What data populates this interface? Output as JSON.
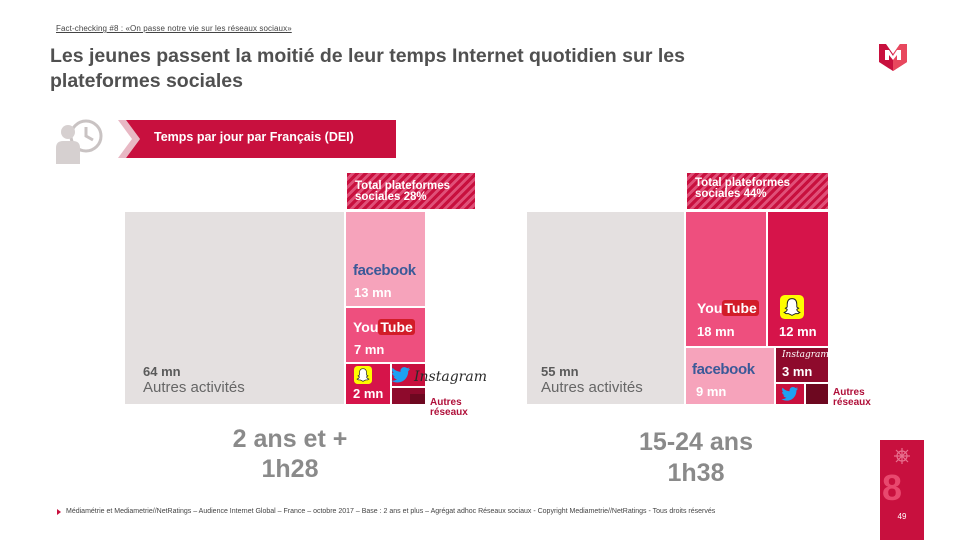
{
  "header": {
    "kicker": "Fact-checking #8 : «On passe notre vie sur les réseaux sociaux»",
    "title": "Les jeunes passent la moitié de leur temps Internet quotidien sur les plateformes sociales"
  },
  "ribbon": {
    "label": "Temps par jour par Français (DEI)"
  },
  "icons": {
    "logo": "mediametrie-m-logo",
    "person": "person-clock-icon"
  },
  "colors": {
    "accent": "#c8103e",
    "pink": "#f0809f",
    "gray_block": "#e4e0e0"
  },
  "chart_data": [
    {
      "type": "treemap",
      "group": "2 ans et +",
      "total": "1h28",
      "social_share_label": "Total plateformes sociales 28%",
      "tiles": [
        {
          "name": "Autres activités",
          "value": "64 mn"
        },
        {
          "name": "facebook",
          "value": "13 mn"
        },
        {
          "name": "YouTube",
          "value": "7 mn"
        },
        {
          "name": "Snapchat",
          "value": "2 mn"
        },
        {
          "name": "Twitter",
          "value": ""
        },
        {
          "name": "Instagram",
          "value": ""
        },
        {
          "name": "Autres réseaux",
          "value": ""
        }
      ],
      "values_mn": {
        "autres_activites": 64,
        "facebook": 13,
        "youtube": 7,
        "snapchat": 2
      }
    },
    {
      "type": "treemap",
      "group": "15-24 ans",
      "total": "1h38",
      "social_share_label": "Total plateformes sociales 44%",
      "tiles": [
        {
          "name": "Autres activités",
          "value": "55 mn"
        },
        {
          "name": "YouTube",
          "value": "18 mn"
        },
        {
          "name": "Snapchat",
          "value": "12 mn"
        },
        {
          "name": "facebook",
          "value": "9 mn"
        },
        {
          "name": "Instagram",
          "value": "3 mn"
        },
        {
          "name": "Twitter",
          "value": ""
        },
        {
          "name": "Autres réseaux",
          "value": ""
        }
      ],
      "values_mn": {
        "autres_activites": 55,
        "youtube": 18,
        "snapchat": 12,
        "facebook": 9,
        "instagram": 3
      }
    }
  ],
  "labels": {
    "mn_64": "64 mn",
    "autres_activites": "Autres activités",
    "fb_13": "13 mn",
    "yt_7": "7 mn",
    "sc_2": "2 mn",
    "mn_55": "55 mn",
    "yt_18": "18 mn",
    "sc_12": "12 mn",
    "fb_9": "9 mn",
    "ig_3": "3 mn",
    "autres_reseaux_1": "Autres",
    "autres_reseaux_2": "réseaux",
    "total_1_a": "Total plateformes",
    "total_1_b": "sociales 28%",
    "total_2_a": "Total plateformes",
    "total_2_b": "sociales 44%",
    "group_1": "2 ans et +",
    "time_1": "1h28",
    "group_2": "15-24 ans",
    "time_2": "1h38",
    "facebook": "facebook",
    "instagram": "Instagram",
    "you": "You",
    "tube": "Tube"
  },
  "footer": {
    "source": "Médiamétrie et Mediametrie//NetRatings – Audience Internet Global – France – octobre 2017 – Base : 2 ans et plus – Agrégat adhoc Réseaux sociaux - Copyright Mediametrie//NetRatings - Tous droits réservés",
    "page": "49",
    "section": "8"
  }
}
